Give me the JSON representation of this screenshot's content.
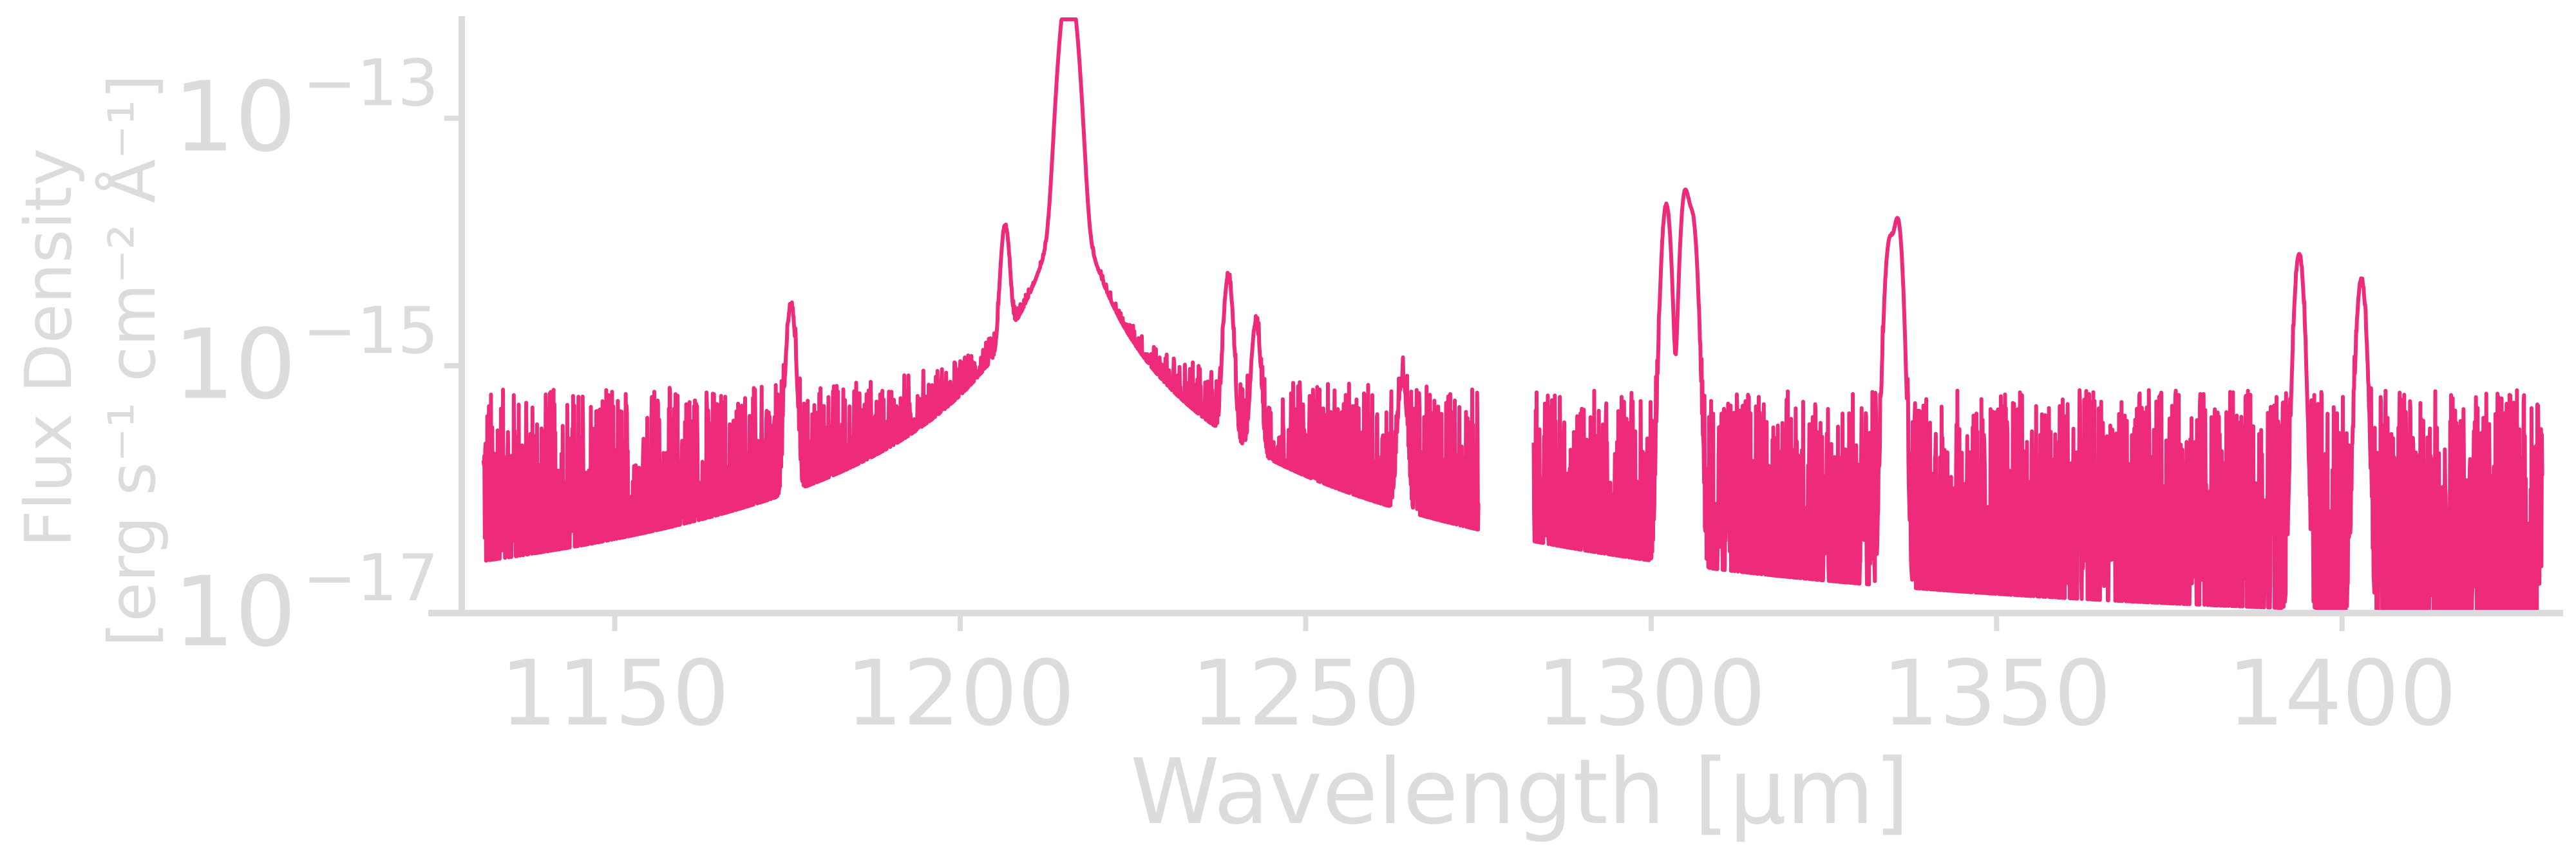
{
  "chart_data": {
    "type": "line",
    "title": "",
    "xlabel": "Wavelength [μm]",
    "ylabel_lines": [
      "Flux Density",
      "[erg s⁻¹ cm⁻² Å⁻¹]"
    ],
    "xlim": [
      1123,
      1432
    ],
    "ylim_log10": [
      -17,
      -12.2
    ],
    "yscale": "log",
    "grid": false,
    "legend": "none",
    "x_ticks": [
      {
        "value": 1150,
        "label": "1150"
      },
      {
        "value": 1200,
        "label": "1200"
      },
      {
        "value": 1250,
        "label": "1250"
      },
      {
        "value": 1300,
        "label": "1300"
      },
      {
        "value": 1350,
        "label": "1350"
      },
      {
        "value": 1400,
        "label": "1400"
      }
    ],
    "y_ticks": [
      {
        "value": 1e-17,
        "base": "10",
        "exp": "−17"
      },
      {
        "value": 1e-15,
        "base": "10",
        "exp": "−15"
      },
      {
        "value": 1e-13,
        "base": "10",
        "exp": "−13"
      }
    ],
    "series": [
      {
        "color": "#ee2a7b",
        "segments": [
          {
            "x_start": 1131,
            "x_end": 1275
          },
          {
            "x_start": 1283,
            "x_end": 1429
          }
        ],
        "noise_floor_log10": [
          -17.0,
          -15.4
        ],
        "emission_lines": [
          {
            "x": 1175.5,
            "peak": 3e-15
          },
          {
            "x": 1206.5,
            "peak": 1.2e-14
          },
          {
            "x": 1215.7,
            "peak": 1.2e-12
          },
          {
            "x": 1238.8,
            "peak": 5e-15
          },
          {
            "x": 1242.8,
            "peak": 2e-15
          },
          {
            "x": 1264.0,
            "peak": 7e-16
          },
          {
            "x": 1302.2,
            "peak": 2e-14
          },
          {
            "x": 1304.9,
            "peak": 2.5e-14
          },
          {
            "x": 1306.0,
            "peak": 1.5e-14
          },
          {
            "x": 1334.5,
            "peak": 1e-14
          },
          {
            "x": 1335.7,
            "peak": 1.5e-14
          },
          {
            "x": 1393.8,
            "peak": 8e-15
          },
          {
            "x": 1402.8,
            "peak": 5e-15
          }
        ]
      }
    ]
  }
}
